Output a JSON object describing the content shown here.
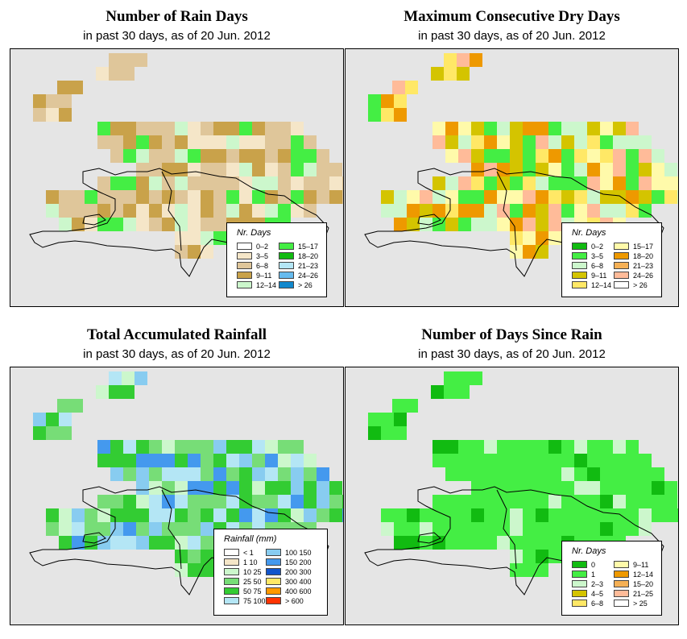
{
  "panels": [
    {
      "title": "Number of Rain Days",
      "subtitle": "in past 30 days, as of  20 Jun. 2012",
      "legend": {
        "title": "Nr. Days",
        "columns": 2,
        "items": [
          {
            "label": "0–2",
            "color": "#ffffff"
          },
          {
            "label": "3–5",
            "color": "#f5e6c8"
          },
          {
            "label": "6–8",
            "color": "#dfc69a"
          },
          {
            "label": "9–11",
            "color": "#c9a24a"
          },
          {
            "label": "12–14",
            "color": "#ccf7cc"
          },
          {
            "label": "15–17",
            "color": "#44ee44"
          },
          {
            "label": "18–20",
            "color": "#11bb11"
          },
          {
            "label": "21–23",
            "color": "#b4e6f5"
          },
          {
            "label": "24–26",
            "color": "#66bbee"
          },
          {
            "label": "> 26",
            "color": "#1188cc"
          }
        ]
      }
    },
    {
      "title": "Maximum Consecutive Dry Days",
      "subtitle": "in past 30 days, as of  20 Jun. 2012",
      "legend": {
        "title": "Nr. Days",
        "columns": 2,
        "items": [
          {
            "label": "0–2",
            "color": "#11bb11"
          },
          {
            "label": "3–5",
            "color": "#44ee44"
          },
          {
            "label": "6–8",
            "color": "#ccf7cc"
          },
          {
            "label": "9–11",
            "color": "#d4c400"
          },
          {
            "label": "12–14",
            "color": "#ffe866"
          },
          {
            "label": "15–17",
            "color": "#fffaaa"
          },
          {
            "label": "18–20",
            "color": "#ee9900"
          },
          {
            "label": "21–23",
            "color": "#f5b055"
          },
          {
            "label": "24–26",
            "color": "#ffbb99"
          },
          {
            "label": "> 26",
            "color": "#ffffff"
          }
        ]
      }
    },
    {
      "title": "Total Accumulated Rainfall",
      "subtitle": "in past 30 days, as of  20 Jun. 2012",
      "legend": {
        "title": "Rainfall (mm)",
        "columns": 2,
        "items": [
          {
            "label": "< 1",
            "color": "#ffffff"
          },
          {
            "label": "1    10",
            "color": "#f5e6c8"
          },
          {
            "label": "10   25",
            "color": "#ccf7cc"
          },
          {
            "label": "25   50",
            "color": "#77dd77"
          },
          {
            "label": "50   75",
            "color": "#33cc33"
          },
          {
            "label": "75  100",
            "color": "#b4e6f5"
          },
          {
            "label": "100  150",
            "color": "#88ccf0"
          },
          {
            "label": "150  200",
            "color": "#4499ee"
          },
          {
            "label": "200  300",
            "color": "#1155cc"
          },
          {
            "label": "300  400",
            "color": "#ffe866"
          },
          {
            "label": "400  600",
            "color": "#ff9900"
          },
          {
            "label": "> 600",
            "color": "#ff3300"
          }
        ]
      }
    },
    {
      "title": "Number of Days Since Rain",
      "subtitle": "in past 30 days, as of  20 Jun. 2012",
      "legend": {
        "title": "Nr. Days",
        "columns": 2,
        "items": [
          {
            "label": "0",
            "color": "#11bb11"
          },
          {
            "label": "1",
            "color": "#44ee44"
          },
          {
            "label": "2–3",
            "color": "#ccf7cc"
          },
          {
            "label": "4–5",
            "color": "#d4c400"
          },
          {
            "label": "6–8",
            "color": "#ffe866"
          },
          {
            "label": "9–11",
            "color": "#fffaaa"
          },
          {
            "label": "12–14",
            "color": "#ee9900"
          },
          {
            "label": "15–20",
            "color": "#f5b055"
          },
          {
            "label": "21–25",
            "color": "#ffbb99"
          },
          {
            "label": "> 25",
            "color": "#ffffff"
          }
        ]
      }
    }
  ]
}
